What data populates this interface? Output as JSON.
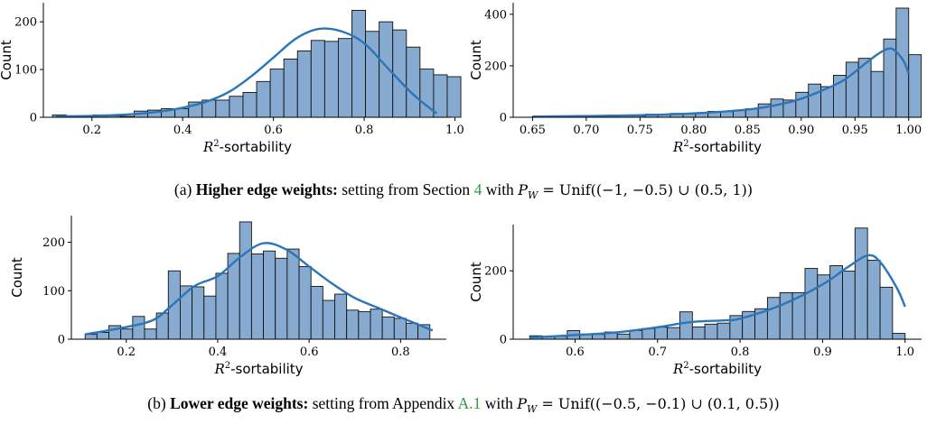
{
  "chart_data": [
    {
      "type": "bar",
      "id": "a-left",
      "xlabel_var": "R",
      "xlabel_sup": "2",
      "xlabel_suffix": "-sortability",
      "ylabel": "Count",
      "xlim": [
        0.093,
        0.993
      ],
      "ylim": [
        0,
        240
      ],
      "xticks": [
        0.2,
        0.4,
        0.6,
        0.8,
        1.0
      ],
      "xtick_labels": [
        "0.2",
        "0.4",
        "0.6",
        "0.8",
        "1.0"
      ],
      "yticks": [
        0,
        100,
        200
      ],
      "ytick_labels": [
        "0",
        "100",
        "200"
      ],
      "bin_edges": [
        0.113,
        0.143,
        0.173,
        0.203,
        0.233,
        0.263,
        0.293,
        0.323,
        0.353,
        0.383,
        0.413,
        0.443,
        0.473,
        0.503,
        0.533,
        0.563,
        0.593,
        0.623,
        0.653,
        0.683,
        0.713,
        0.743,
        0.773,
        0.803,
        0.833,
        0.863,
        0.893,
        0.923,
        0.953,
        0.983
      ],
      "values": [
        5,
        2,
        3,
        5,
        3,
        2,
        13,
        15,
        18,
        18,
        32,
        36,
        36,
        44,
        52,
        75,
        101,
        122,
        139,
        161,
        159,
        165,
        224,
        180,
        200,
        183,
        147,
        101,
        89,
        85
      ],
      "kde_x": [
        0.12,
        0.2,
        0.28,
        0.35,
        0.4,
        0.45,
        0.5,
        0.55,
        0.6,
        0.65,
        0.7,
        0.75,
        0.8,
        0.85,
        0.9,
        0.93,
        0.96
      ],
      "kde_y": [
        2,
        3,
        6,
        12,
        20,
        32,
        52,
        85,
        125,
        165,
        185,
        180,
        155,
        105,
        55,
        30,
        8
      ]
    },
    {
      "type": "bar",
      "id": "a-right",
      "xlabel_var": "R",
      "xlabel_sup": "2",
      "xlabel_suffix": "-sortability",
      "ylabel": "Count",
      "xlim": [
        0.632,
        1.012
      ],
      "ylim": [
        0,
        445
      ],
      "xticks": [
        0.65,
        0.7,
        0.75,
        0.8,
        0.85,
        0.9,
        0.95,
        1.0
      ],
      "xtick_labels": [
        "0.65",
        "0.70",
        "0.75",
        "0.80",
        "0.85",
        "0.90",
        "0.95",
        "1.00"
      ],
      "yticks": [
        0,
        200,
        400
      ],
      "ytick_labels": [
        "0",
        "200",
        "400"
      ],
      "bin_edges": [
        0.65,
        0.6617,
        0.6733,
        0.685,
        0.6967,
        0.7083,
        0.72,
        0.7317,
        0.7433,
        0.755,
        0.7667,
        0.7783,
        0.79,
        0.8017,
        0.8133,
        0.825,
        0.8367,
        0.8483,
        0.86,
        0.8717,
        0.8833,
        0.895,
        0.9067,
        0.9183,
        0.93,
        0.9417,
        0.9533,
        0.965,
        0.9767,
        0.9883,
        1.0
      ],
      "values": [
        3,
        2,
        3,
        5,
        7,
        5,
        8,
        6,
        5,
        12,
        10,
        15,
        13,
        18,
        23,
        22,
        26,
        33,
        52,
        71,
        67,
        97,
        129,
        119,
        163,
        214,
        229,
        178,
        304,
        424,
        243
      ],
      "kde_x": [
        0.65,
        0.7,
        0.75,
        0.8,
        0.85,
        0.88,
        0.9,
        0.92,
        0.94,
        0.96,
        0.975,
        0.985,
        0.995,
        1.0
      ],
      "kde_y": [
        3,
        5,
        8,
        15,
        30,
        50,
        72,
        105,
        145,
        210,
        255,
        265,
        220,
        170
      ]
    },
    {
      "type": "bar",
      "id": "b-left",
      "xlabel_var": "R",
      "xlabel_sup": "2",
      "xlabel_suffix": "-sortability",
      "ylabel": "Count",
      "xlim": [
        0.08,
        0.9
      ],
      "ylim": [
        0,
        255
      ],
      "xticks": [
        0.2,
        0.4,
        0.6,
        0.8
      ],
      "xtick_labels": [
        "0.2",
        "0.4",
        "0.6",
        "0.8"
      ],
      "yticks": [
        0,
        100,
        200
      ],
      "ytick_labels": [
        "0",
        "100",
        "200"
      ],
      "bin_edges": [
        0.11,
        0.136,
        0.162,
        0.188,
        0.214,
        0.24,
        0.266,
        0.292,
        0.318,
        0.344,
        0.37,
        0.396,
        0.422,
        0.448,
        0.474,
        0.5,
        0.526,
        0.552,
        0.578,
        0.604,
        0.63,
        0.656,
        0.682,
        0.708,
        0.734,
        0.76,
        0.786,
        0.812,
        0.838,
        0.864
      ],
      "values": [
        10,
        14,
        28,
        21,
        47,
        21,
        54,
        141,
        110,
        108,
        89,
        136,
        177,
        242,
        176,
        182,
        167,
        186,
        150,
        109,
        80,
        93,
        60,
        57,
        62,
        46,
        43,
        33,
        30
      ],
      "kde_x": [
        0.11,
        0.2,
        0.26,
        0.3,
        0.35,
        0.4,
        0.45,
        0.5,
        0.55,
        0.6,
        0.65,
        0.7,
        0.75,
        0.8,
        0.87
      ],
      "kde_y": [
        10,
        25,
        40,
        70,
        110,
        130,
        170,
        198,
        185,
        150,
        115,
        85,
        65,
        45,
        18
      ]
    },
    {
      "type": "bar",
      "id": "b-right",
      "xlabel_var": "R",
      "xlabel_sup": "2",
      "xlabel_suffix": "-sortability",
      "ylabel": "Count",
      "xlim": [
        0.525,
        1.02
      ],
      "ylim": [
        0,
        335
      ],
      "xticks": [
        0.6,
        0.7,
        0.8,
        0.9,
        1.0
      ],
      "xtick_labels": [
        "0.6",
        "0.7",
        "0.8",
        "0.9",
        "1.0"
      ],
      "yticks": [
        0,
        200
      ],
      "ytick_labels": [
        "0",
        "200"
      ],
      "bin_edges": [
        0.545,
        0.5602,
        0.5753,
        0.5905,
        0.6057,
        0.6208,
        0.636,
        0.6512,
        0.6663,
        0.6815,
        0.6967,
        0.7118,
        0.727,
        0.7422,
        0.7573,
        0.7725,
        0.7877,
        0.8028,
        0.818,
        0.8332,
        0.8483,
        0.8635,
        0.8787,
        0.8938,
        0.909,
        0.9242,
        0.9393,
        0.9545,
        0.9697,
        0.9848,
        1.0
      ],
      "values": [
        10,
        8,
        8,
        25,
        15,
        14,
        21,
        15,
        25,
        31,
        35,
        34,
        80,
        36,
        44,
        47,
        69,
        81,
        89,
        122,
        136,
        136,
        207,
        188,
        215,
        199,
        325,
        231,
        152,
        17
      ],
      "kde_x": [
        0.545,
        0.6,
        0.65,
        0.7,
        0.74,
        0.78,
        0.8,
        0.85,
        0.9,
        0.93,
        0.955,
        0.97,
        0.99,
        1.0
      ],
      "kde_y": [
        5,
        12,
        20,
        35,
        50,
        55,
        60,
        100,
        160,
        210,
        245,
        225,
        150,
        95
      ]
    }
  ],
  "captions": {
    "a": {
      "label": "(a) ",
      "bold": "Higher edge weights:",
      "text_before_link": " setting from Section ",
      "link": "4",
      "text_after_link": " with ",
      "math_var": "P",
      "math_sub": "W",
      "math_rest": " = Unif((−1, −0.5) ∪ (0.5, 1))"
    },
    "b": {
      "label": "(b) ",
      "bold": "Lower edge weights:",
      "text_before_link": " setting from Appendix ",
      "link": "A.1",
      "text_after_link": " with ",
      "math_var": "P",
      "math_sub": "W",
      "math_rest": " = Unif((−0.5, −0.1) ∪ (0.1, 0.5))"
    }
  },
  "colors": {
    "bar_fill": "#87abd0",
    "bar_edge": "#111111",
    "kde_line": "#2b75b8",
    "axis": "#000000"
  }
}
